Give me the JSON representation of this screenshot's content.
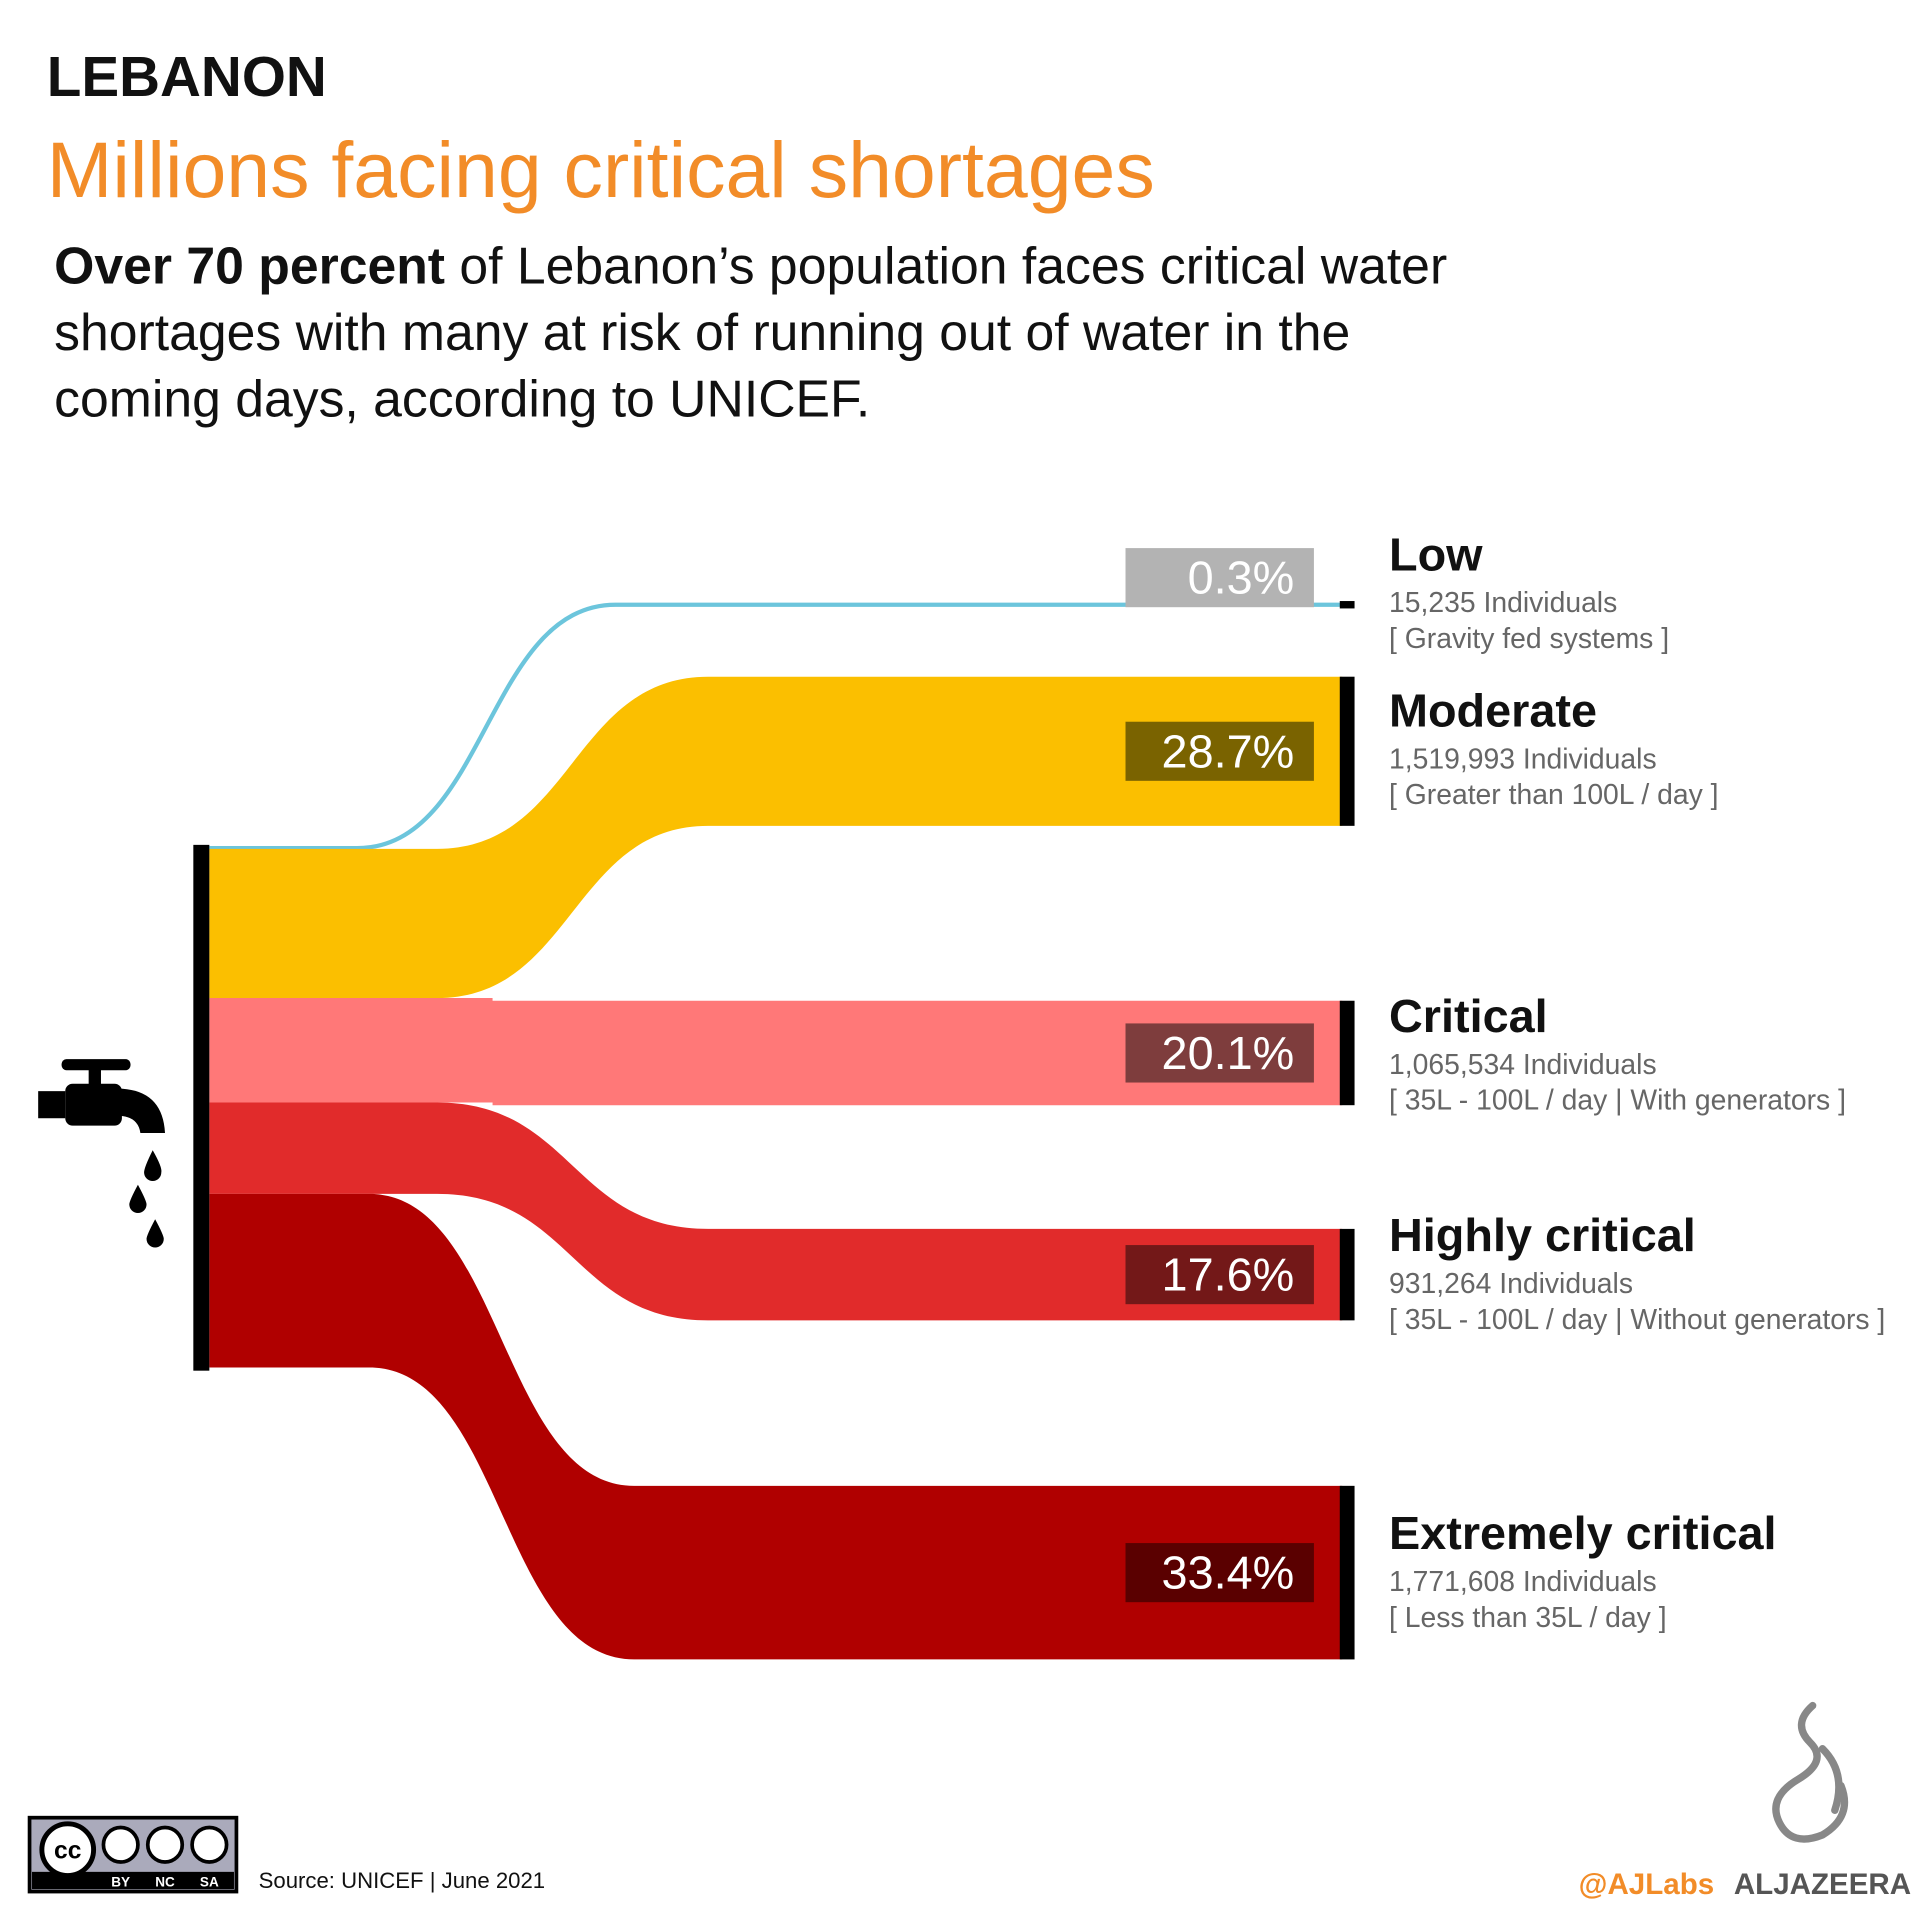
{
  "chart_data": {
    "type": "sankey",
    "kicker": "LEBANON",
    "title": "Millions facing critical shortages",
    "subtitle_bold": "Over 70 percent",
    "subtitle_lines": [
      " of Lebanon’s population faces critical water",
      "shortages with many at risk of running out of water in the",
      "coming days, according to UNICEF."
    ],
    "categories": [
      "Low",
      "Moderate",
      "Critical",
      "Highly critical",
      "Extremely critical"
    ],
    "values": [
      0.3,
      28.7,
      20.1,
      17.6,
      33.4
    ],
    "value_labels": [
      "0.3%",
      "28.7%",
      "20.1%",
      "17.6%",
      "33.4%"
    ],
    "individuals": [
      "15,235 Individuals",
      "1,519,993 Individuals",
      "1,065,534 Individuals",
      "931,264 Individuals",
      "1,771,608 Individuals"
    ],
    "notes": [
      "[ Gravity fed systems ]",
      "[ Greater than 100L / day ]",
      "[ 35L - 100L / day | With generators ]",
      "[ 35L - 100L / day | Without generators ]",
      "[ Less than 35L / day ]"
    ],
    "colors": [
      "#6cc5dc",
      "#fbbf00",
      "#ff7878",
      "#e12b2b",
      "#b00000"
    ],
    "label_colors": [
      "#b3b3b3",
      "#7a6300",
      "#7e3d3d",
      "#731818",
      "#5a0000"
    ],
    "source": "Source: UNICEF | June 2021",
    "license": [
      "cc",
      "BY",
      "NC",
      "SA"
    ],
    "credit": "@AJLabs",
    "brand": "ALJAZEERA"
  }
}
